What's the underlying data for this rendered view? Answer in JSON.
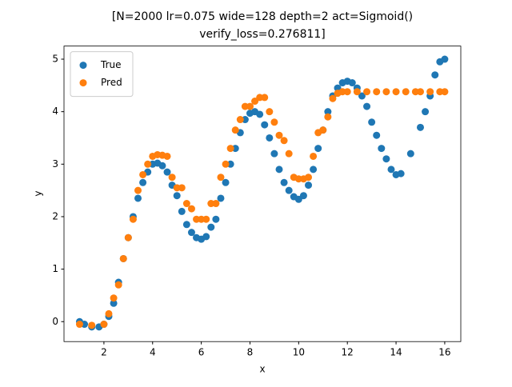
{
  "chart_data": {
    "type": "scatter",
    "title": "[N=2000 lr=0.075 wide=128 depth=2 act=Sigmoid()",
    "subtitle": "verify_loss=0.276811]",
    "x_label": "x",
    "y_label": "y",
    "xlim": [
      0.36,
      16.66
    ],
    "ylim": [
      -0.38,
      5.25
    ],
    "xticks": [
      2,
      4,
      6,
      8,
      10,
      12,
      14,
      16
    ],
    "yticks": [
      0,
      1,
      2,
      3,
      4,
      5
    ],
    "legend": "upper left",
    "series": [
      {
        "name": "True",
        "color": "#1f77b4",
        "x": [
          1.0,
          1.2,
          1.5,
          1.8,
          2.0,
          2.2,
          2.4,
          2.6,
          2.8,
          3.0,
          3.2,
          3.4,
          3.6,
          3.8,
          4.0,
          4.2,
          4.4,
          4.6,
          4.8,
          5.0,
          5.2,
          5.4,
          5.6,
          5.8,
          6.0,
          6.2,
          6.4,
          6.6,
          6.8,
          7.0,
          7.2,
          7.4,
          7.6,
          7.8,
          8.0,
          8.2,
          8.4,
          8.6,
          8.8,
          9.0,
          9.2,
          9.4,
          9.6,
          9.8,
          10.0,
          10.2,
          10.4,
          10.6,
          10.8,
          11.0,
          11.2,
          11.4,
          11.6,
          11.8,
          12.0,
          12.2,
          12.4,
          12.6,
          12.8,
          13.0,
          13.2,
          13.4,
          13.6,
          13.8,
          14.0,
          14.2,
          14.6,
          15.0,
          15.2,
          15.4,
          15.6,
          15.8,
          16.0
        ],
        "values": [
          0.0,
          -0.05,
          -0.1,
          -0.1,
          -0.05,
          0.1,
          0.35,
          0.75,
          1.2,
          1.6,
          2.0,
          2.35,
          2.65,
          2.85,
          3.0,
          3.02,
          2.97,
          2.85,
          2.6,
          2.4,
          2.1,
          1.85,
          1.7,
          1.6,
          1.57,
          1.62,
          1.8,
          1.95,
          2.35,
          2.65,
          3.0,
          3.3,
          3.6,
          3.85,
          3.97,
          4.0,
          3.95,
          3.75,
          3.5,
          3.2,
          2.9,
          2.65,
          2.5,
          2.38,
          2.33,
          2.4,
          2.6,
          2.9,
          3.3,
          3.65,
          4.0,
          4.3,
          4.45,
          4.55,
          4.58,
          4.55,
          4.45,
          4.3,
          4.1,
          3.8,
          3.55,
          3.3,
          3.1,
          2.9,
          2.8,
          2.82,
          3.2,
          3.7,
          4.0,
          4.3,
          4.7,
          4.95,
          5.0
        ]
      },
      {
        "name": "Pred",
        "color": "#ff7f0e",
        "x": [
          1.0,
          1.5,
          2.0,
          2.2,
          2.4,
          2.6,
          2.8,
          3.0,
          3.2,
          3.4,
          3.6,
          3.8,
          4.0,
          4.2,
          4.4,
          4.6,
          4.8,
          5.0,
          5.2,
          5.4,
          5.6,
          5.8,
          6.0,
          6.2,
          6.4,
          6.6,
          6.8,
          7.0,
          7.2,
          7.4,
          7.6,
          7.8,
          8.0,
          8.2,
          8.4,
          8.6,
          8.8,
          9.0,
          9.2,
          9.4,
          9.6,
          9.8,
          10.0,
          10.2,
          10.4,
          10.6,
          10.8,
          11.0,
          11.2,
          11.4,
          11.6,
          11.8,
          12.0,
          12.4,
          12.8,
          13.2,
          13.6,
          14.0,
          14.4,
          14.8,
          15.0,
          15.4,
          15.8,
          16.0
        ],
        "values": [
          -0.05,
          -0.07,
          -0.05,
          0.15,
          0.45,
          0.7,
          1.2,
          1.6,
          1.95,
          2.5,
          2.8,
          3.0,
          3.15,
          3.18,
          3.17,
          3.15,
          2.75,
          2.55,
          2.55,
          2.25,
          2.15,
          1.95,
          1.95,
          1.95,
          2.25,
          2.25,
          2.75,
          3.0,
          3.3,
          3.65,
          3.85,
          4.1,
          4.1,
          4.2,
          4.27,
          4.27,
          4.0,
          3.8,
          3.55,
          3.45,
          3.2,
          2.75,
          2.72,
          2.72,
          2.75,
          3.15,
          3.6,
          3.65,
          3.9,
          4.25,
          4.35,
          4.38,
          4.38,
          4.38,
          4.38,
          4.38,
          4.38,
          4.38,
          4.38,
          4.38,
          4.38,
          4.38,
          4.38,
          4.38
        ]
      }
    ]
  }
}
